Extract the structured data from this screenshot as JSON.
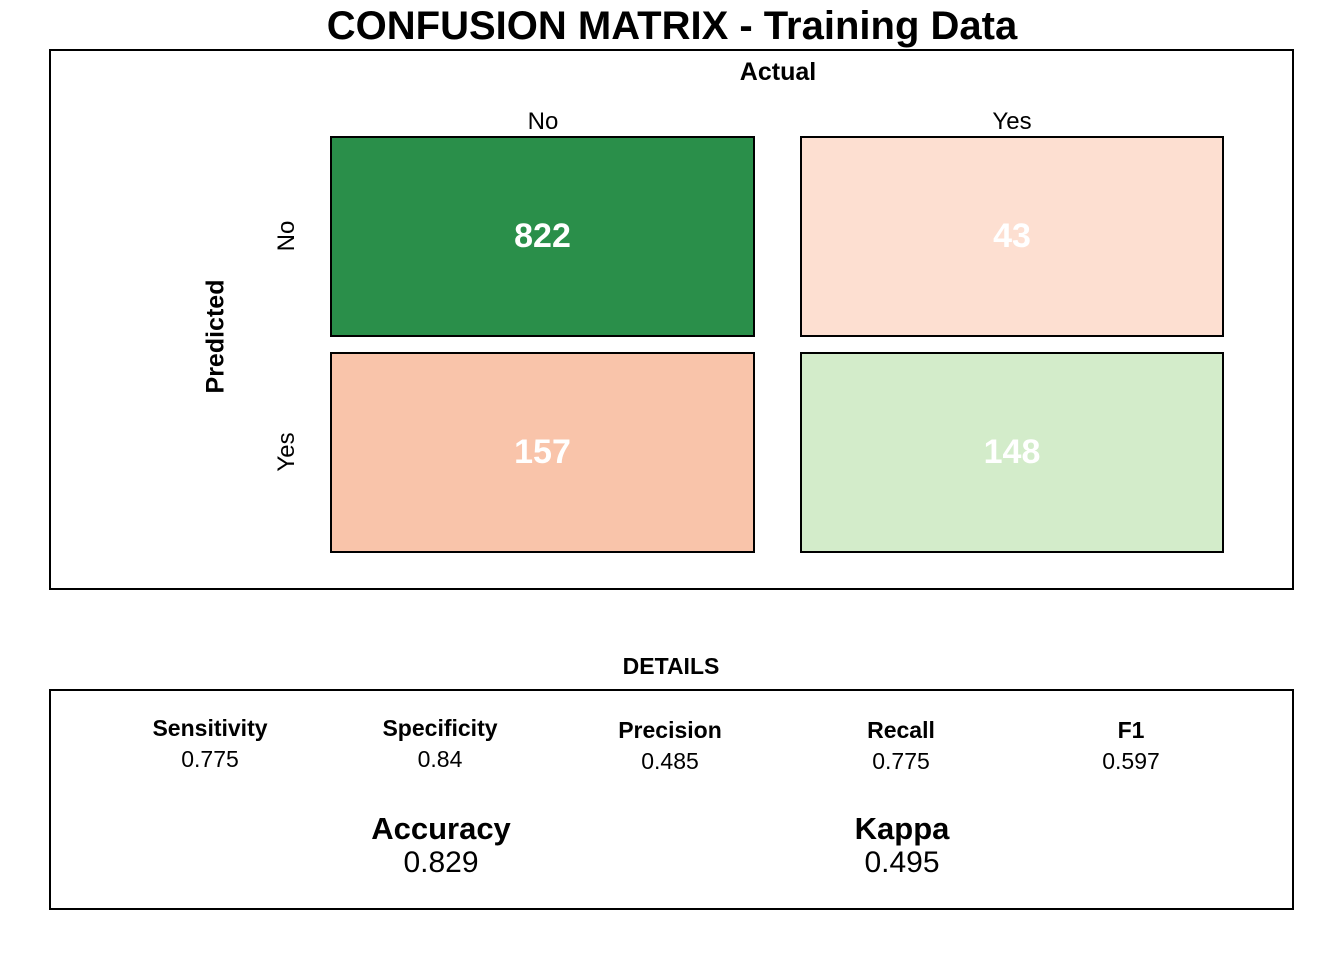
{
  "chart_data": {
    "type": "heatmap",
    "title": "CONFUSION MATRIX - Training Data",
    "xlabel": "Actual",
    "ylabel": "Predicted",
    "actual_categories": [
      "No",
      "Yes"
    ],
    "predicted_categories": [
      "No",
      "Yes"
    ],
    "cells": [
      {
        "predicted": "No",
        "actual": "No",
        "value": 822,
        "color": "#2a8f4a"
      },
      {
        "predicted": "No",
        "actual": "Yes",
        "value": 43,
        "color": "#fddfd1"
      },
      {
        "predicted": "Yes",
        "actual": "No",
        "value": 157,
        "color": "#f9c4aa"
      },
      {
        "predicted": "Yes",
        "actual": "Yes",
        "value": 148,
        "color": "#d3ecca"
      }
    ]
  },
  "details": {
    "title": "DETAILS",
    "metrics": [
      {
        "name": "Sensitivity",
        "value": "0.775"
      },
      {
        "name": "Specificity",
        "value": "0.84"
      },
      {
        "name": "Precision",
        "value": "0.485"
      },
      {
        "name": "Recall",
        "value": "0.775"
      },
      {
        "name": "F1",
        "value": "0.597"
      }
    ],
    "summary": [
      {
        "name": "Accuracy",
        "value": "0.829"
      },
      {
        "name": "Kappa",
        "value": "0.495"
      }
    ]
  }
}
